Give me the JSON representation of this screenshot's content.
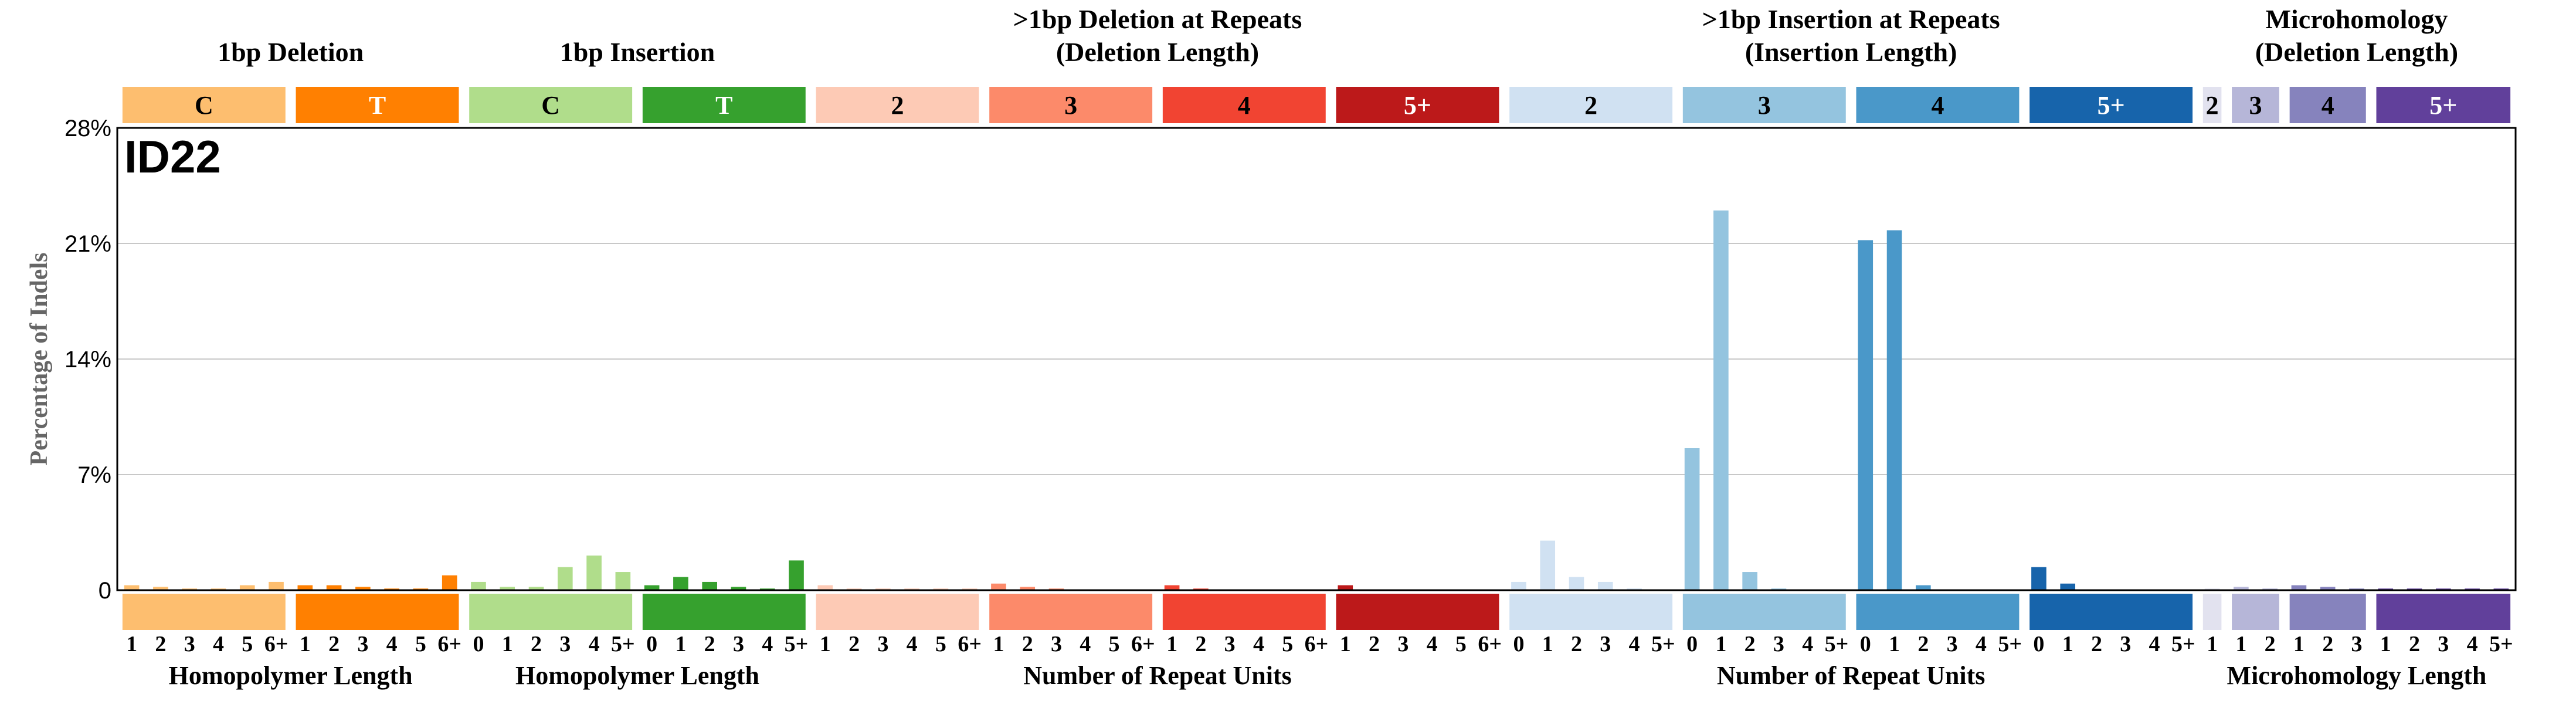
{
  "chart_data": {
    "type": "bar",
    "title": "ID22",
    "ylabel": "Percentage of Indels",
    "ylim": [
      0,
      28
    ],
    "yticks": [
      "0",
      "7%",
      "14%",
      "21%",
      "28%"
    ],
    "ytick_values": [
      0,
      7,
      14,
      21,
      28
    ],
    "grid": true,
    "headers": [
      {
        "label": "1bp Deletion",
        "line2": "",
        "from": 0,
        "to": 1
      },
      {
        "label": "1bp Insertion",
        "line2": "",
        "from": 2,
        "to": 3
      },
      {
        "label": ">1bp Deletion at Repeats",
        "line2": "(Deletion Length)",
        "from": 4,
        "to": 7
      },
      {
        "label": ">1bp Insertion at Repeats",
        "line2": "(Insertion Length)",
        "from": 8,
        "to": 11
      },
      {
        "label": "Microhomology",
        "line2": "(Deletion Length)",
        "from": 12,
        "to": 15
      }
    ],
    "groups": [
      {
        "label": "C",
        "color": "#fdbe6f",
        "text_color": "#000000",
        "ticks": [
          "1",
          "2",
          "3",
          "4",
          "5",
          "6+"
        ],
        "values": [
          0.3,
          0.2,
          0.1,
          0.1,
          0.3,
          0.5
        ]
      },
      {
        "label": "T",
        "color": "#ff8001",
        "text_color": "#ffffff",
        "ticks": [
          "1",
          "2",
          "3",
          "4",
          "5",
          "6+"
        ],
        "values": [
          0.3,
          0.3,
          0.2,
          0.1,
          0.1,
          0.9
        ]
      },
      {
        "label": "C",
        "color": "#b0dd8b",
        "text_color": "#000000",
        "ticks": [
          "0",
          "1",
          "2",
          "3",
          "4",
          "5+"
        ],
        "values": [
          0.5,
          0.2,
          0.2,
          1.4,
          2.1,
          1.1
        ]
      },
      {
        "label": "T",
        "color": "#36a12e",
        "text_color": "#ffffff",
        "ticks": [
          "0",
          "1",
          "2",
          "3",
          "4",
          "5+"
        ],
        "values": [
          0.3,
          0.8,
          0.5,
          0.2,
          0.1,
          1.8
        ]
      },
      {
        "label": "2",
        "color": "#fdcab5",
        "text_color": "#000000",
        "ticks": [
          "1",
          "2",
          "3",
          "4",
          "5",
          "6+"
        ],
        "values": [
          0.3,
          0.1,
          0.1,
          0.1,
          0.1,
          0.1
        ]
      },
      {
        "label": "3",
        "color": "#fc8a6a",
        "text_color": "#000000",
        "ticks": [
          "1",
          "2",
          "3",
          "4",
          "5",
          "6+"
        ],
        "values": [
          0.4,
          0.2,
          0.1,
          0.0,
          0.0,
          0.0
        ]
      },
      {
        "label": "4",
        "color": "#f14432",
        "text_color": "#000000",
        "ticks": [
          "1",
          "2",
          "3",
          "4",
          "5",
          "6+"
        ],
        "values": [
          0.3,
          0.1,
          0.0,
          0.0,
          0.0,
          0.0
        ]
      },
      {
        "label": "5+",
        "color": "#bc191a",
        "text_color": "#ffffff",
        "ticks": [
          "1",
          "2",
          "3",
          "4",
          "5",
          "6+"
        ],
        "values": [
          0.3,
          0.0,
          0.0,
          0.0,
          0.0,
          0.0
        ]
      },
      {
        "label": "2",
        "color": "#d0e1f2",
        "text_color": "#000000",
        "ticks": [
          "0",
          "1",
          "2",
          "3",
          "4",
          "5+"
        ],
        "values": [
          0.5,
          3.0,
          0.8,
          0.5,
          0.1,
          0.0
        ]
      },
      {
        "label": "3",
        "color": "#94c4df",
        "text_color": "#000000",
        "ticks": [
          "0",
          "1",
          "2",
          "3",
          "4",
          "5+"
        ],
        "values": [
          8.6,
          23.0,
          1.1,
          0.1,
          0.0,
          0.0
        ]
      },
      {
        "label": "4",
        "color": "#4a98c9",
        "text_color": "#000000",
        "ticks": [
          "0",
          "1",
          "2",
          "3",
          "4",
          "5+"
        ],
        "values": [
          21.2,
          21.8,
          0.3,
          0.0,
          0.0,
          0.0
        ]
      },
      {
        "label": "5+",
        "color": "#1764ab",
        "text_color": "#ffffff",
        "ticks": [
          "0",
          "1",
          "2",
          "3",
          "4",
          "5+"
        ],
        "values": [
          1.4,
          0.4,
          0.0,
          0.0,
          0.0,
          0.0
        ]
      },
      {
        "label": "2",
        "color": "#e2e2ef",
        "text_color": "#000000",
        "ticks": [
          "1"
        ],
        "values": [
          0.1
        ]
      },
      {
        "label": "3",
        "color": "#b6b6d8",
        "text_color": "#000000",
        "ticks": [
          "1",
          "2"
        ],
        "values": [
          0.2,
          0.1
        ]
      },
      {
        "label": "4",
        "color": "#8683bd",
        "text_color": "#000000",
        "ticks": [
          "1",
          "2",
          "3"
        ],
        "values": [
          0.3,
          0.2,
          0.1
        ]
      },
      {
        "label": "5+",
        "color": "#61409b",
        "text_color": "#ffffff",
        "ticks": [
          "1",
          "2",
          "3",
          "4",
          "5+"
        ],
        "values": [
          0.1,
          0.1,
          0.1,
          0.1,
          0.1
        ]
      }
    ],
    "xlabels": [
      {
        "label": "Homopolymer Length",
        "from": 0,
        "to": 1
      },
      {
        "label": "Homopolymer Length",
        "from": 2,
        "to": 3
      },
      {
        "label": "Number of Repeat Units",
        "from": 4,
        "to": 7
      },
      {
        "label": "Number of Repeat Units",
        "from": 8,
        "to": 11
      },
      {
        "label": "Microhomology Length",
        "from": 12,
        "to": 15
      }
    ]
  }
}
